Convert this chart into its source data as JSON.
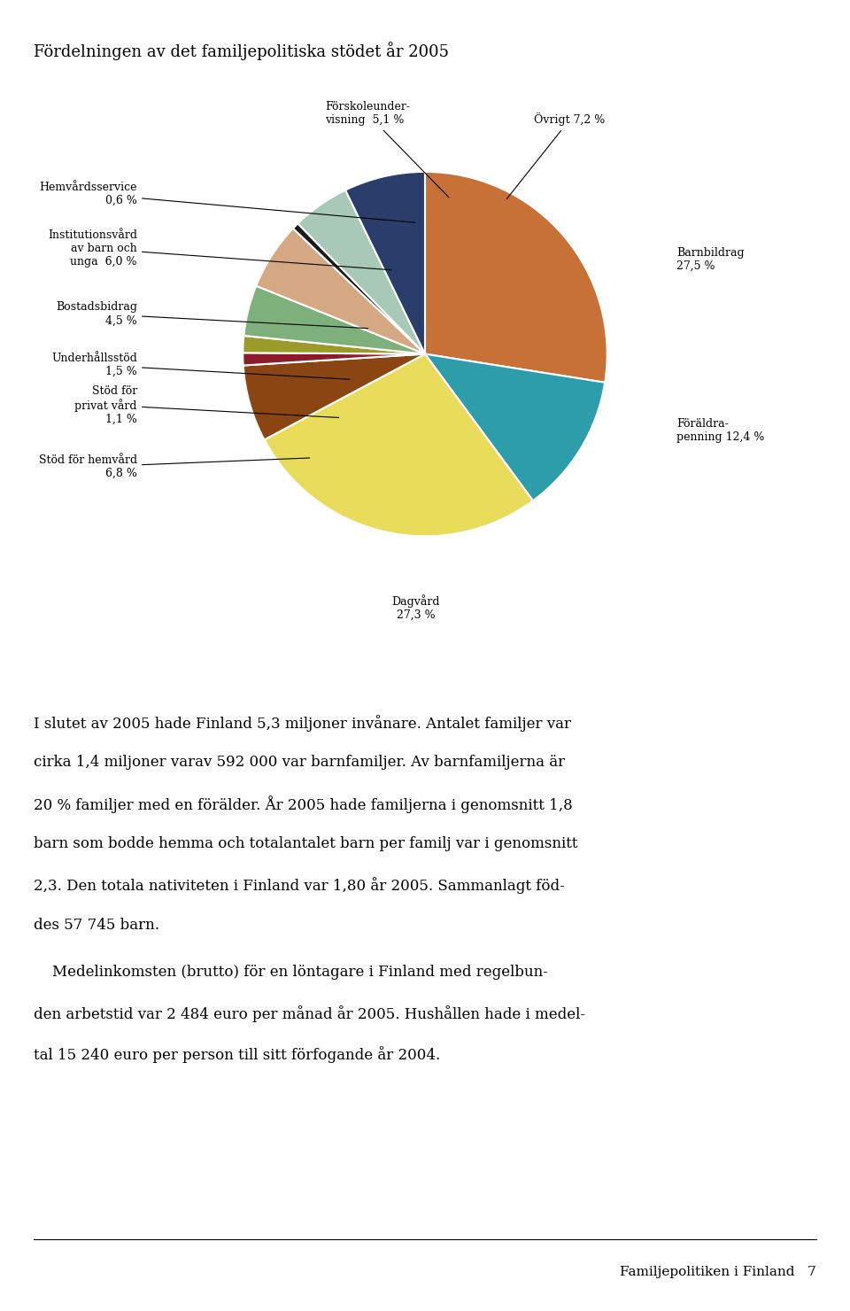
{
  "title": "Fördelningen av det familjepolitiska stödet år 2005",
  "slices": [
    {
      "label": "Barnbildrag\n27,5 %",
      "value": 27.5,
      "color": "#C87137"
    },
    {
      "label": "Föräldra-\npenning 12,4 %",
      "value": 12.4,
      "color": "#2E9DAA"
    },
    {
      "label": "Dagvård\n27,3 %",
      "value": 27.3,
      "color": "#E8DC5A"
    },
    {
      "label": "Stöd för hemvård\n6,8 %",
      "value": 6.8,
      "color": "#8B4513"
    },
    {
      "label": "Stöd för\nprivat vård\n1,1 %",
      "value": 1.1,
      "color": "#8B1A2A"
    },
    {
      "label": "Underhållsstöd\n1,5 %",
      "value": 1.5,
      "color": "#9B9B2A"
    },
    {
      "label": "Bostadsbidrag\n4,5 %",
      "value": 4.5,
      "color": "#7DB07A"
    },
    {
      "label": "Institutionsvård\nav barn och\nunga  6,0 %",
      "value": 6.0,
      "color": "#D4A882"
    },
    {
      "label": "Hemvårdsservice\n0,6 %",
      "value": 0.6,
      "color": "#1A1A1A"
    },
    {
      "label": "Förskoleunder-\nvisning  5,1 %",
      "value": 5.1,
      "color": "#A8C8B8"
    },
    {
      "label": "Övrigt 7,2 %",
      "value": 7.2,
      "color": "#2B3D6B"
    }
  ],
  "body_text_para1": "I slutet av 2005 hade Finland 5,3 miljoner invånare. Antalet familjer var cirka 1,4 miljoner varav 592 000 var barnfamiljer. Av barnfamiljerna är 20 % familjer med en förälder. År 2005 hade familjerna i genomsnitt 1,8 barn som bodde hemma och totalantalet barn per familj var i genomsnitt 2,3. Den totala nativiteten i Finland var 1,80 år 2005. Sammanlagt föd-des 57 745 barn.",
  "body_text_para2": "Medelinkomsten (brutto) för en löntagare i Finland med regelbunden arbetstid var 2 484 euro per månad år 2005. Hushållen hade i medeltal 15 240 euro per person till sitt förfogande år 2004.",
  "footer_right": "Familjepolitiken i Finland   7",
  "background_color": "#FFFFFF"
}
